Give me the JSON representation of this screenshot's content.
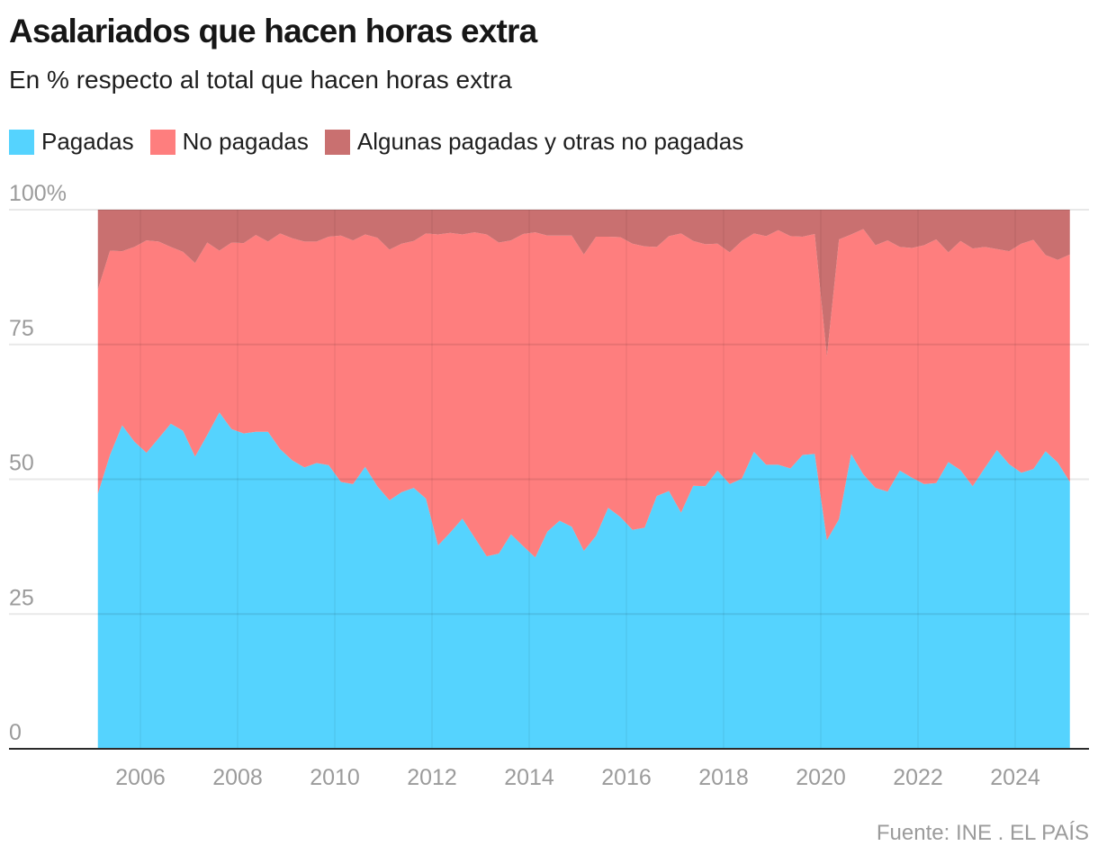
{
  "header": {
    "title": "Asalariados que hacen horas extra",
    "subtitle": "En % respecto al total que hacen horas extra"
  },
  "legend": [
    {
      "label": "Pagadas",
      "color": "#55D3FE"
    },
    {
      "label": "No pagadas",
      "color": "#FE7E7E"
    },
    {
      "label": "Algunas pagadas y otras no pagadas",
      "color": "#C97070"
    }
  ],
  "footer": {
    "source": "Fuente: INE . EL PAÍS"
  },
  "chart_data": {
    "type": "area",
    "stacked": true,
    "title": "Asalariados que hacen horas extra",
    "subtitle": "En % respecto al total que hacen horas extra",
    "xlabel": "",
    "ylabel": "",
    "x_start": "2005 T1",
    "x_end": "2025 T1",
    "x_frequency": "quarterly",
    "x_range": [
      2005.0,
      2025.0
    ],
    "x_ticks": [
      "2006",
      "2008",
      "2010",
      "2012",
      "2014",
      "2016",
      "2018",
      "2020",
      "2022",
      "2024"
    ],
    "x_tick_values": [
      2006,
      2008,
      2010,
      2012,
      2014,
      2016,
      2018,
      2020,
      2022,
      2024
    ],
    "ylim": [
      0,
      100
    ],
    "y_ticks": [
      "0",
      "25",
      "50",
      "75",
      "100%"
    ],
    "y_tick_values": [
      0,
      25,
      50,
      75,
      100
    ],
    "grid": true,
    "legend_position": "top-left",
    "series": [
      {
        "name": "Pagadas",
        "color": "#55D3FE",
        "values": [
          47.3,
          54.5,
          60.0,
          57.0,
          54.9,
          57.6,
          60.3,
          59.0,
          54.2,
          58.2,
          62.4,
          59.3,
          58.5,
          58.8,
          58.8,
          55.6,
          53.5,
          52.2,
          53.0,
          52.6,
          49.5,
          49.1,
          52.3,
          48.7,
          46.1,
          47.6,
          48.4,
          46.4,
          37.7,
          40.1,
          42.7,
          39.2,
          35.7,
          36.2,
          39.8,
          37.6,
          35.5,
          40.3,
          42.3,
          41.2,
          36.7,
          39.5,
          44.7,
          43.0,
          40.6,
          41.0,
          46.9,
          47.8,
          43.8,
          48.8,
          48.7,
          51.6,
          49.1,
          50.1,
          55.1,
          52.7,
          52.7,
          52.0,
          54.5,
          54.7,
          38.7,
          42.6,
          54.7,
          50.9,
          48.4,
          47.7,
          51.6,
          50.3,
          49.1,
          49.3,
          53.2,
          51.7,
          48.7,
          52.1,
          55.4,
          52.8,
          51.2,
          51.9,
          55.2,
          53.1,
          49.5
        ]
      },
      {
        "name": "No pagadas",
        "color": "#FE7E7E",
        "values": [
          37.9,
          37.9,
          32.3,
          36.1,
          39.4,
          36.5,
          32.8,
          33.2,
          35.9,
          35.7,
          30.0,
          34.6,
          35.3,
          36.5,
          35.3,
          40.0,
          41.2,
          41.9,
          41.1,
          42.4,
          45.7,
          45.2,
          43.1,
          46.1,
          46.5,
          46.1,
          45.8,
          49.2,
          57.7,
          55.6,
          52.7,
          56.6,
          59.7,
          57.7,
          54.5,
          57.9,
          60.3,
          54.9,
          52.9,
          54.0,
          55.0,
          55.5,
          50.3,
          51.9,
          53.1,
          52.2,
          46.2,
          47.3,
          51.8,
          45.4,
          44.9,
          42.1,
          43.0,
          44.1,
          40.5,
          42.4,
          43.5,
          43.1,
          40.5,
          40.8,
          34.1,
          51.9,
          40.7,
          45.5,
          45.0,
          46.6,
          41.5,
          42.6,
          44.3,
          45.2,
          38.9,
          42.5,
          44.1,
          41.0,
          37.3,
          39.5,
          42.5,
          42.5,
          36.4,
          37.6,
          42.2
        ]
      },
      {
        "name": "Algunas pagadas y otras no pagadas",
        "color": "#C97070",
        "values": [
          14.8,
          7.6,
          7.7,
          6.9,
          5.7,
          5.9,
          6.9,
          7.8,
          9.9,
          6.1,
          7.6,
          6.1,
          6.2,
          4.7,
          5.9,
          4.4,
          5.3,
          5.9,
          5.9,
          5.0,
          4.8,
          5.7,
          4.6,
          5.2,
          7.4,
          6.3,
          5.8,
          4.4,
          4.6,
          4.3,
          4.6,
          4.2,
          4.6,
          6.1,
          5.7,
          4.5,
          4.2,
          4.8,
          4.8,
          4.8,
          8.3,
          5.0,
          5.0,
          5.1,
          6.3,
          6.8,
          6.9,
          4.9,
          4.4,
          5.8,
          6.4,
          6.3,
          7.9,
          5.8,
          4.4,
          4.9,
          3.8,
          4.9,
          5.0,
          4.5,
          27.2,
          5.5,
          4.6,
          3.6,
          6.6,
          5.7,
          6.9,
          7.1,
          6.6,
          5.5,
          7.9,
          5.8,
          7.2,
          6.9,
          7.3,
          7.7,
          6.3,
          5.6,
          8.4,
          9.3,
          8.3
        ]
      }
    ]
  }
}
